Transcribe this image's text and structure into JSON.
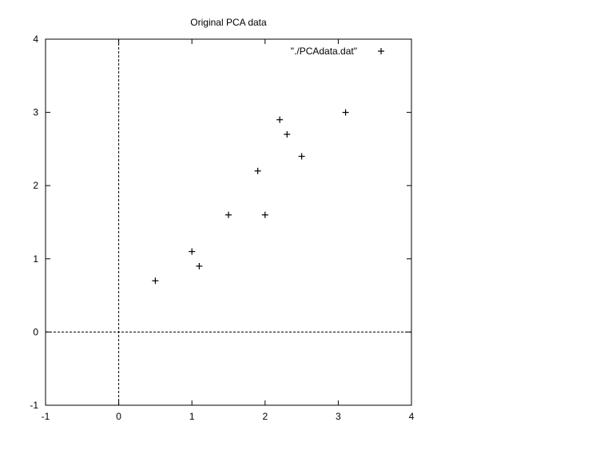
{
  "chart_data": {
    "type": "scatter",
    "title": "Original PCA data",
    "xlabel": "",
    "ylabel": "",
    "xlim": [
      -1,
      4
    ],
    "ylim": [
      -1,
      4
    ],
    "xticks": [
      -1,
      0,
      1,
      2,
      3,
      4
    ],
    "yticks": [
      -1,
      0,
      1,
      2,
      3,
      4
    ],
    "grid": false,
    "zero_axes": true,
    "legend_position": "top-right",
    "marker": "+",
    "series": [
      {
        "name": "\"./PCAdata.dat\"",
        "points": [
          {
            "x": 2.5,
            "y": 2.4
          },
          {
            "x": 0.5,
            "y": 0.7
          },
          {
            "x": 2.2,
            "y": 2.9
          },
          {
            "x": 1.9,
            "y": 2.2
          },
          {
            "x": 3.1,
            "y": 3.0
          },
          {
            "x": 2.3,
            "y": 2.7
          },
          {
            "x": 2.0,
            "y": 1.6
          },
          {
            "x": 1.0,
            "y": 1.1
          },
          {
            "x": 1.5,
            "y": 1.6
          },
          {
            "x": 1.1,
            "y": 0.9
          }
        ]
      }
    ],
    "colors": {
      "axis": "#000000",
      "marker": "#000000",
      "background": "#ffffff"
    }
  }
}
